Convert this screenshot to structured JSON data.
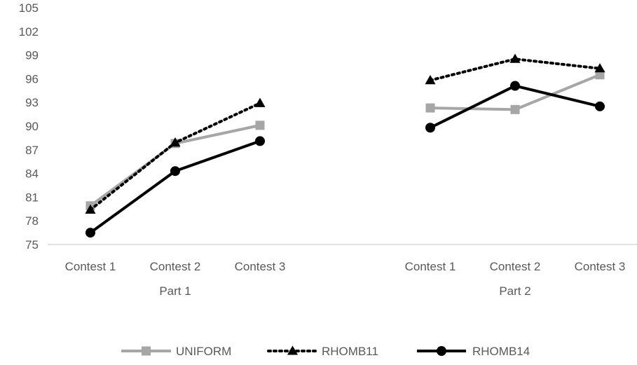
{
  "chart_data": {
    "type": "line",
    "yticks": [
      75,
      78,
      81,
      84,
      87,
      90,
      93,
      96,
      99,
      102,
      105
    ],
    "ylim": [
      75,
      105
    ],
    "grid": false,
    "legend_position": "bottom",
    "groups": [
      {
        "label": "Part 1",
        "categories": [
          "Contest 1",
          "Contest 2",
          "Contest 3"
        ]
      },
      {
        "label": "Part 2",
        "categories": [
          "Contest 1",
          "Contest 2",
          "Contest 3"
        ]
      }
    ],
    "series": [
      {
        "name": "UNIFORM",
        "color": "#a6a6a6",
        "marker": "square",
        "dash": "solid",
        "values": [
          [
            79.9,
            87.8,
            90.1
          ],
          [
            92.3,
            92.1,
            96.5
          ]
        ]
      },
      {
        "name": "RHOMB11",
        "color": "#000000",
        "marker": "triangle",
        "dash": "dotted",
        "values": [
          [
            79.4,
            87.9,
            92.9
          ],
          [
            95.8,
            98.5,
            97.3
          ]
        ]
      },
      {
        "name": "RHOMB14",
        "color": "#000000",
        "marker": "circle",
        "dash": "solid",
        "values": [
          [
            76.5,
            84.3,
            88.1
          ],
          [
            89.8,
            95.1,
            92.5
          ]
        ]
      }
    ]
  }
}
